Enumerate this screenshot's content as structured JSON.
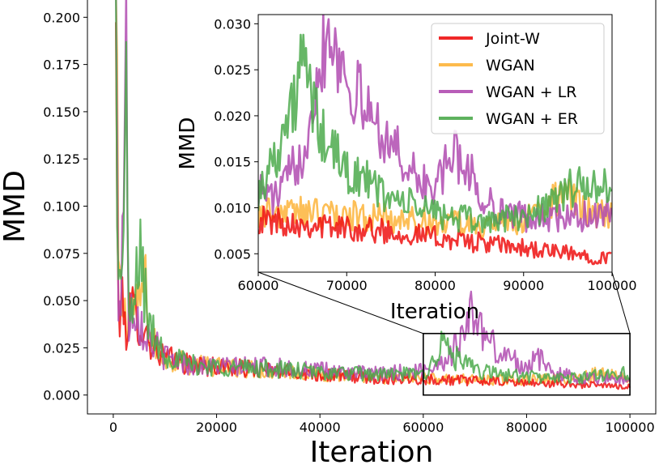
{
  "chart_data": [
    {
      "id": "main",
      "type": "line",
      "title": "",
      "xlabel": "Iteration",
      "ylabel": "MMD",
      "xlim": [
        -5000,
        105000
      ],
      "ylim": [
        -0.01,
        0.21
      ],
      "xticks": [
        0,
        20000,
        40000,
        60000,
        80000,
        100000
      ],
      "xtick_labels": [
        "0",
        "20000",
        "40000",
        "60000",
        "80000",
        "100000"
      ],
      "yticks": [
        0.0,
        0.025,
        0.05,
        0.075,
        0.1,
        0.125,
        0.15,
        0.175,
        0.2
      ],
      "ytick_labels": [
        "0.000",
        "0.025",
        "0.050",
        "0.075",
        "0.100",
        "0.125",
        "0.150",
        "0.175",
        "0.200"
      ],
      "grid": false,
      "zoom_box": {
        "x": [
          60000,
          100000
        ],
        "y": [
          0,
          0.03
        ]
      },
      "series": [
        {
          "name": "Joint-W",
          "color": "#ee1111",
          "x": [
            500,
            1000,
            1500,
            2500,
            3500,
            5000,
            7000,
            10000,
            15000,
            20000,
            30000,
            40000,
            50000,
            60000,
            70000,
            80000,
            90000,
            100000
          ],
          "values": [
            0.18,
            0.04,
            0.05,
            0.035,
            0.045,
            0.04,
            0.028,
            0.02,
            0.016,
            0.015,
            0.013,
            0.011,
            0.009,
            0.0085,
            0.0075,
            0.0065,
            0.0055,
            0.0045
          ]
        },
        {
          "name": "WGAN",
          "color": "#fdb43a",
          "x": [
            500,
            1000,
            1500,
            2500,
            3500,
            5000,
            6000,
            7000,
            10000,
            15000,
            20000,
            30000,
            40000,
            50000,
            60000,
            70000,
            80000,
            90000,
            95000,
            100000
          ],
          "values": [
            0.2,
            0.07,
            0.05,
            0.04,
            0.05,
            0.045,
            0.065,
            0.03,
            0.02,
            0.016,
            0.015,
            0.013,
            0.011,
            0.009,
            0.009,
            0.008,
            0.008,
            0.009,
            0.012,
            0.009
          ]
        },
        {
          "name": "WGAN + LR",
          "color": "#b04bb0",
          "x": [
            500,
            1000,
            1500,
            2500,
            3000,
            4000,
            5000,
            7000,
            10000,
            15000,
            20000,
            30000,
            40000,
            50000,
            60000,
            65000,
            68000,
            70000,
            72000,
            75000,
            80000,
            82000,
            85000,
            90000,
            100000
          ],
          "values": [
            0.2,
            0.05,
            0.055,
            0.175,
            0.04,
            0.05,
            0.04,
            0.03,
            0.02,
            0.016,
            0.015,
            0.015,
            0.013,
            0.011,
            0.013,
            0.02,
            0.035,
            0.045,
            0.03,
            0.022,
            0.015,
            0.02,
            0.012,
            0.009,
            0.009
          ]
        },
        {
          "name": "WGAN + ER",
          "color": "#4caa4c",
          "x": [
            500,
            1000,
            1500,
            2500,
            3000,
            4000,
            5000,
            7000,
            10000,
            15000,
            20000,
            30000,
            40000,
            50000,
            60000,
            62000,
            64000,
            66000,
            70000,
            75000,
            80000,
            85000,
            90000,
            95000,
            100000
          ],
          "values": [
            0.2,
            0.06,
            0.05,
            0.165,
            0.035,
            0.045,
            0.08,
            0.035,
            0.022,
            0.016,
            0.015,
            0.014,
            0.012,
            0.011,
            0.011,
            0.018,
            0.028,
            0.02,
            0.013,
            0.011,
            0.01,
            0.009,
            0.009,
            0.011,
            0.012
          ]
        }
      ]
    },
    {
      "id": "inset",
      "type": "line",
      "title": "",
      "xlabel": "Iteration",
      "ylabel": "MMD",
      "xlim": [
        60000,
        100000
      ],
      "ylim": [
        0.003,
        0.031
      ],
      "xticks": [
        60000,
        70000,
        80000,
        90000,
        100000
      ],
      "xtick_labels": [
        "60000",
        "70000",
        "80000",
        "90000",
        "100000"
      ],
      "yticks": [
        0.005,
        0.01,
        0.015,
        0.02,
        0.025,
        0.03
      ],
      "ytick_labels": [
        "0.005",
        "0.010",
        "0.015",
        "0.020",
        "0.025",
        "0.030"
      ],
      "grid": false,
      "legend_position": "top-right",
      "series": [
        {
          "name": "Joint-W",
          "color": "#ee1111",
          "x": [
            60000,
            65000,
            70000,
            75000,
            80000,
            85000,
            90000,
            95000,
            100000
          ],
          "values": [
            0.0087,
            0.0083,
            0.0078,
            0.0074,
            0.0068,
            0.0062,
            0.0056,
            0.005,
            0.0045
          ]
        },
        {
          "name": "WGAN",
          "color": "#fdb43a",
          "x": [
            60000,
            65000,
            70000,
            75000,
            80000,
            85000,
            90000,
            92000,
            95000,
            97000,
            100000
          ],
          "values": [
            0.0095,
            0.0095,
            0.0092,
            0.0088,
            0.0085,
            0.008,
            0.0085,
            0.01,
            0.0115,
            0.0095,
            0.009
          ]
        },
        {
          "name": "WGAN + LR",
          "color": "#b04bb0",
          "x": [
            60000,
            62000,
            65000,
            67000,
            68000,
            70000,
            72000,
            75000,
            78000,
            80000,
            82000,
            84000,
            85000,
            88000,
            90000,
            95000,
            100000
          ],
          "values": [
            0.012,
            0.011,
            0.016,
            0.026,
            0.03,
            0.024,
            0.021,
            0.017,
            0.013,
            0.012,
            0.016,
            0.014,
            0.011,
            0.0095,
            0.009,
            0.0088,
            0.0095
          ]
        },
        {
          "name": "WGAN + ER",
          "color": "#4caa4c",
          "x": [
            60000,
            62000,
            64000,
            65000,
            67000,
            70000,
            72000,
            75000,
            80000,
            83000,
            85000,
            90000,
            93000,
            95000,
            98000,
            100000
          ],
          "values": [
            0.0115,
            0.016,
            0.021,
            0.026,
            0.018,
            0.014,
            0.013,
            0.011,
            0.0095,
            0.0088,
            0.0085,
            0.009,
            0.0105,
            0.012,
            0.0125,
            0.0118
          ]
        }
      ]
    }
  ]
}
